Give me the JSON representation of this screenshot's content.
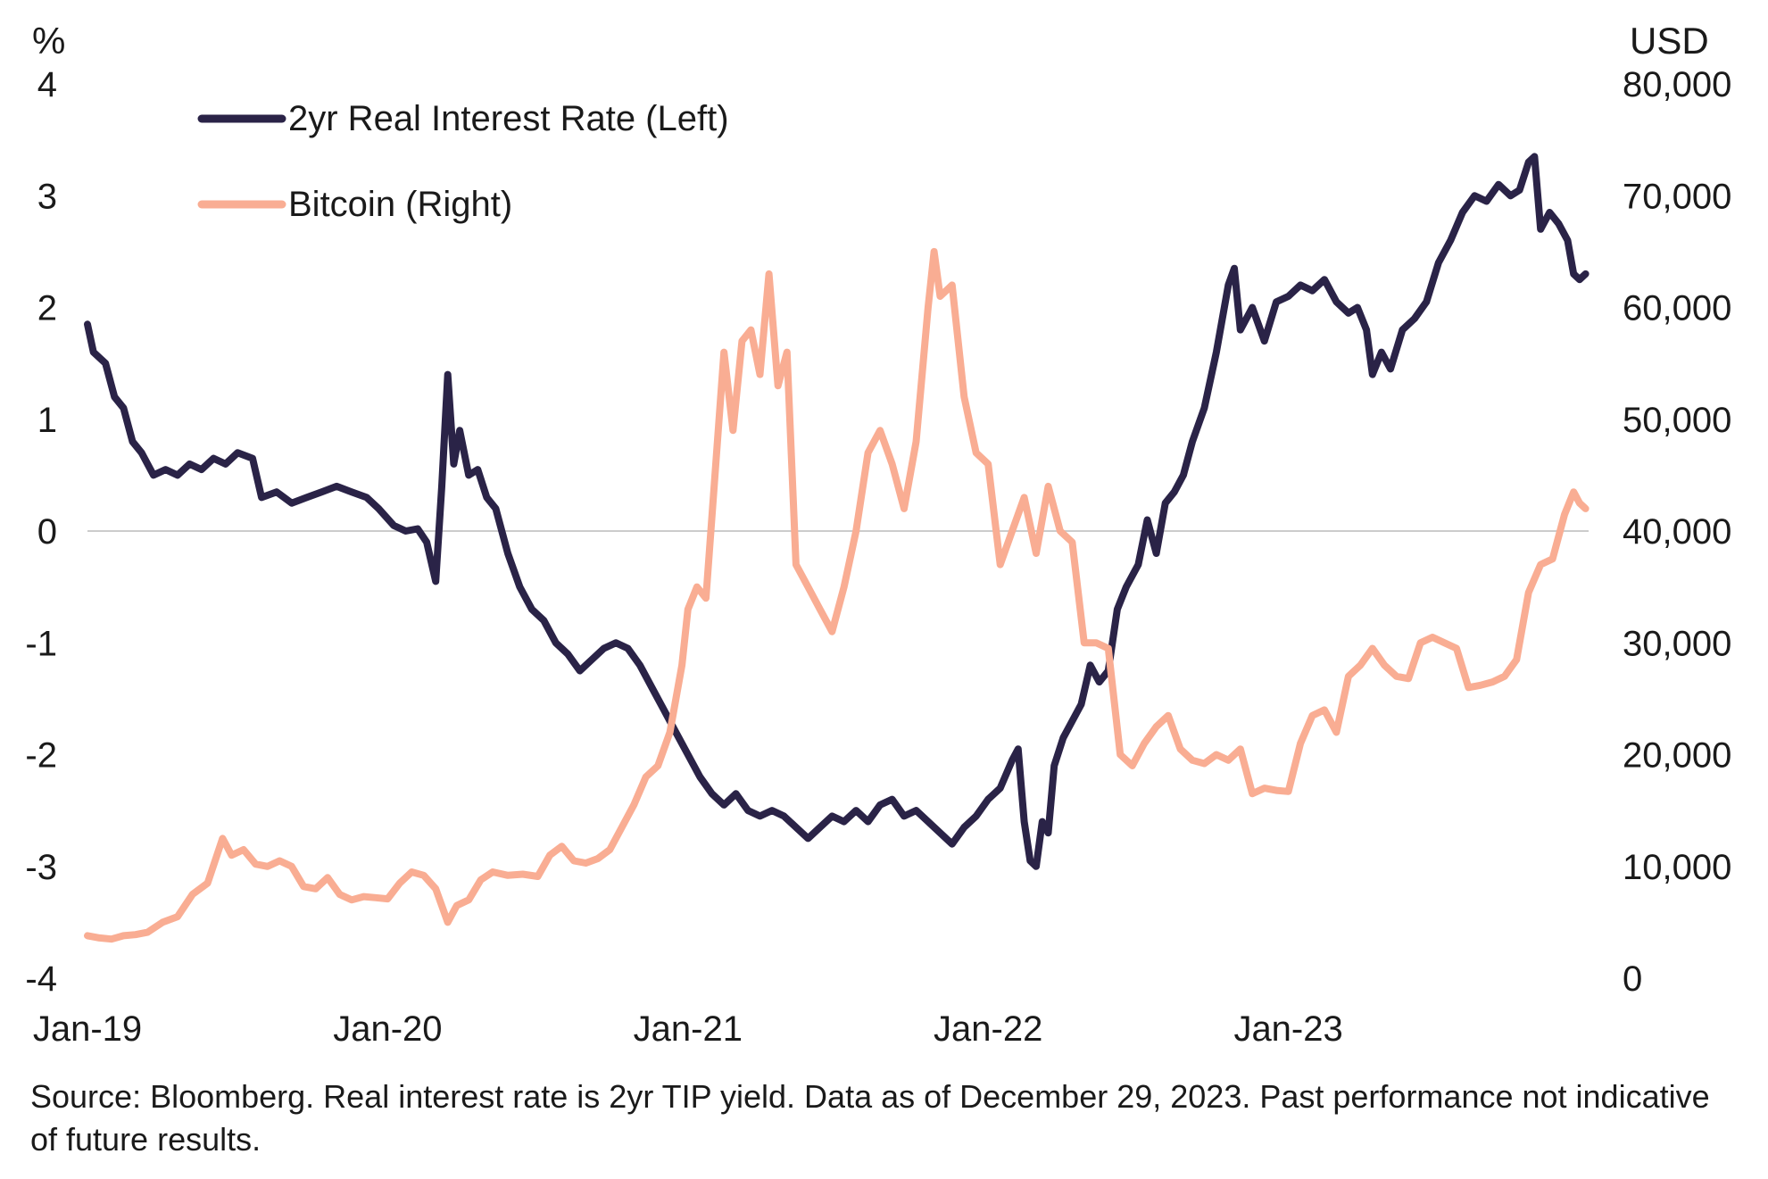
{
  "chart_data": {
    "type": "line",
    "title": "",
    "x_ticks": [
      "Jan-19",
      "Jan-20",
      "Jan-21",
      "Jan-22",
      "Jan-23"
    ],
    "x_range": [
      "Jan-19",
      "Dec-23"
    ],
    "left_axis": {
      "label": "%",
      "range": [
        -4,
        4
      ],
      "ticks": [
        "4",
        "3",
        "2",
        "1",
        "0",
        "-1",
        "-2",
        "-3",
        "-4"
      ]
    },
    "right_axis": {
      "label": "USD",
      "range": [
        0,
        80000
      ],
      "ticks": [
        "80,000",
        "70,000",
        "60,000",
        "50,000",
        "40,000",
        "30,000",
        "20,000",
        "10,000",
        "0"
      ]
    },
    "grid": false,
    "zero_line": true,
    "legend_position": "top-left",
    "series": [
      {
        "name": "2yr Real Interest Rate (Left)",
        "axis": "left",
        "color": "#2a2347",
        "points": [
          [
            2019.0,
            1.85
          ],
          [
            2019.02,
            1.6
          ],
          [
            2019.06,
            1.5
          ],
          [
            2019.09,
            1.2
          ],
          [
            2019.12,
            1.1
          ],
          [
            2019.15,
            0.8
          ],
          [
            2019.18,
            0.7
          ],
          [
            2019.22,
            0.5
          ],
          [
            2019.26,
            0.55
          ],
          [
            2019.3,
            0.5
          ],
          [
            2019.34,
            0.6
          ],
          [
            2019.38,
            0.55
          ],
          [
            2019.42,
            0.65
          ],
          [
            2019.46,
            0.6
          ],
          [
            2019.5,
            0.7
          ],
          [
            2019.55,
            0.65
          ],
          [
            2019.58,
            0.3
          ],
          [
            2019.63,
            0.35
          ],
          [
            2019.68,
            0.25
          ],
          [
            2019.73,
            0.3
          ],
          [
            2019.78,
            0.35
          ],
          [
            2019.83,
            0.4
          ],
          [
            2019.88,
            0.35
          ],
          [
            2019.93,
            0.3
          ],
          [
            2019.97,
            0.2
          ],
          [
            2020.02,
            0.05
          ],
          [
            2020.06,
            0.0
          ],
          [
            2020.1,
            0.02
          ],
          [
            2020.13,
            -0.1
          ],
          [
            2020.16,
            -0.45
          ],
          [
            2020.18,
            0.4
          ],
          [
            2020.2,
            1.4
          ],
          [
            2020.22,
            0.6
          ],
          [
            2020.24,
            0.9
          ],
          [
            2020.27,
            0.5
          ],
          [
            2020.3,
            0.55
          ],
          [
            2020.33,
            0.3
          ],
          [
            2020.36,
            0.2
          ],
          [
            2020.4,
            -0.2
          ],
          [
            2020.44,
            -0.5
          ],
          [
            2020.48,
            -0.7
          ],
          [
            2020.52,
            -0.8
          ],
          [
            2020.56,
            -1.0
          ],
          [
            2020.6,
            -1.1
          ],
          [
            2020.64,
            -1.25
          ],
          [
            2020.68,
            -1.15
          ],
          [
            2020.72,
            -1.05
          ],
          [
            2020.76,
            -1.0
          ],
          [
            2020.8,
            -1.05
          ],
          [
            2020.84,
            -1.2
          ],
          [
            2020.88,
            -1.4
          ],
          [
            2020.92,
            -1.6
          ],
          [
            2020.96,
            -1.8
          ],
          [
            2021.0,
            -2.0
          ],
          [
            2021.04,
            -2.2
          ],
          [
            2021.08,
            -2.35
          ],
          [
            2021.12,
            -2.45
          ],
          [
            2021.16,
            -2.35
          ],
          [
            2021.2,
            -2.5
          ],
          [
            2021.24,
            -2.55
          ],
          [
            2021.28,
            -2.5
          ],
          [
            2021.32,
            -2.55
          ],
          [
            2021.36,
            -2.65
          ],
          [
            2021.4,
            -2.75
          ],
          [
            2021.44,
            -2.65
          ],
          [
            2021.48,
            -2.55
          ],
          [
            2021.52,
            -2.6
          ],
          [
            2021.56,
            -2.5
          ],
          [
            2021.6,
            -2.6
          ],
          [
            2021.64,
            -2.45
          ],
          [
            2021.68,
            -2.4
          ],
          [
            2021.72,
            -2.55
          ],
          [
            2021.76,
            -2.5
          ],
          [
            2021.8,
            -2.6
          ],
          [
            2021.84,
            -2.7
          ],
          [
            2021.88,
            -2.8
          ],
          [
            2021.92,
            -2.65
          ],
          [
            2021.96,
            -2.55
          ],
          [
            2022.0,
            -2.4
          ],
          [
            2022.04,
            -2.3
          ],
          [
            2022.08,
            -2.05
          ],
          [
            2022.1,
            -1.95
          ],
          [
            2022.12,
            -2.6
          ],
          [
            2022.14,
            -2.95
          ],
          [
            2022.16,
            -3.0
          ],
          [
            2022.18,
            -2.6
          ],
          [
            2022.2,
            -2.7
          ],
          [
            2022.22,
            -2.1
          ],
          [
            2022.25,
            -1.85
          ],
          [
            2022.28,
            -1.7
          ],
          [
            2022.31,
            -1.55
          ],
          [
            2022.34,
            -1.2
          ],
          [
            2022.37,
            -1.35
          ],
          [
            2022.4,
            -1.25
          ],
          [
            2022.43,
            -0.7
          ],
          [
            2022.46,
            -0.5
          ],
          [
            2022.5,
            -0.3
          ],
          [
            2022.53,
            0.1
          ],
          [
            2022.56,
            -0.2
          ],
          [
            2022.59,
            0.25
          ],
          [
            2022.62,
            0.35
          ],
          [
            2022.65,
            0.5
          ],
          [
            2022.68,
            0.8
          ],
          [
            2022.72,
            1.1
          ],
          [
            2022.76,
            1.6
          ],
          [
            2022.8,
            2.2
          ],
          [
            2022.82,
            2.35
          ],
          [
            2022.84,
            1.8
          ],
          [
            2022.88,
            2.0
          ],
          [
            2022.92,
            1.7
          ],
          [
            2022.96,
            2.05
          ],
          [
            2023.0,
            2.1
          ],
          [
            2023.04,
            2.2
          ],
          [
            2023.08,
            2.15
          ],
          [
            2023.12,
            2.25
          ],
          [
            2023.16,
            2.05
          ],
          [
            2023.2,
            1.95
          ],
          [
            2023.23,
            2.0
          ],
          [
            2023.26,
            1.8
          ],
          [
            2023.28,
            1.4
          ],
          [
            2023.31,
            1.6
          ],
          [
            2023.34,
            1.45
          ],
          [
            2023.38,
            1.8
          ],
          [
            2023.42,
            1.9
          ],
          [
            2023.46,
            2.05
          ],
          [
            2023.5,
            2.4
          ],
          [
            2023.54,
            2.6
          ],
          [
            2023.58,
            2.85
          ],
          [
            2023.62,
            3.0
          ],
          [
            2023.66,
            2.95
          ],
          [
            2023.7,
            3.1
          ],
          [
            2023.74,
            3.0
          ],
          [
            2023.77,
            3.05
          ],
          [
            2023.8,
            3.3
          ],
          [
            2023.82,
            3.35
          ],
          [
            2023.84,
            2.7
          ],
          [
            2023.87,
            2.85
          ],
          [
            2023.9,
            2.75
          ],
          [
            2023.93,
            2.6
          ],
          [
            2023.95,
            2.3
          ],
          [
            2023.97,
            2.25
          ],
          [
            2023.99,
            2.3
          ]
        ]
      },
      {
        "name": "Bitcoin (Right)",
        "axis": "right",
        "color": "#f9ad93",
        "points": [
          [
            2019.0,
            3800
          ],
          [
            2019.04,
            3600
          ],
          [
            2019.08,
            3500
          ],
          [
            2019.12,
            3800
          ],
          [
            2019.16,
            3900
          ],
          [
            2019.2,
            4100
          ],
          [
            2019.25,
            5000
          ],
          [
            2019.3,
            5500
          ],
          [
            2019.35,
            7500
          ],
          [
            2019.4,
            8500
          ],
          [
            2019.45,
            12500
          ],
          [
            2019.48,
            11000
          ],
          [
            2019.52,
            11500
          ],
          [
            2019.56,
            10200
          ],
          [
            2019.6,
            10000
          ],
          [
            2019.64,
            10500
          ],
          [
            2019.68,
            10000
          ],
          [
            2019.72,
            8200
          ],
          [
            2019.76,
            8000
          ],
          [
            2019.8,
            9000
          ],
          [
            2019.84,
            7500
          ],
          [
            2019.88,
            7000
          ],
          [
            2019.92,
            7300
          ],
          [
            2019.96,
            7200
          ],
          [
            2020.0,
            7100
          ],
          [
            2020.04,
            8500
          ],
          [
            2020.08,
            9500
          ],
          [
            2020.12,
            9200
          ],
          [
            2020.16,
            8000
          ],
          [
            2020.2,
            5000
          ],
          [
            2020.23,
            6500
          ],
          [
            2020.27,
            7000
          ],
          [
            2020.31,
            8800
          ],
          [
            2020.35,
            9500
          ],
          [
            2020.4,
            9200
          ],
          [
            2020.45,
            9300
          ],
          [
            2020.5,
            9100
          ],
          [
            2020.54,
            11000
          ],
          [
            2020.58,
            11800
          ],
          [
            2020.62,
            10500
          ],
          [
            2020.66,
            10300
          ],
          [
            2020.7,
            10700
          ],
          [
            2020.74,
            11500
          ],
          [
            2020.78,
            13500
          ],
          [
            2020.82,
            15500
          ],
          [
            2020.86,
            18000
          ],
          [
            2020.9,
            19000
          ],
          [
            2020.94,
            22000
          ],
          [
            2020.98,
            28000
          ],
          [
            2021.0,
            33000
          ],
          [
            2021.03,
            35000
          ],
          [
            2021.06,
            34000
          ],
          [
            2021.09,
            45000
          ],
          [
            2021.12,
            56000
          ],
          [
            2021.15,
            49000
          ],
          [
            2021.18,
            57000
          ],
          [
            2021.21,
            58000
          ],
          [
            2021.24,
            54000
          ],
          [
            2021.27,
            63000
          ],
          [
            2021.3,
            53000
          ],
          [
            2021.33,
            56000
          ],
          [
            2021.36,
            37000
          ],
          [
            2021.4,
            35000
          ],
          [
            2021.44,
            33000
          ],
          [
            2021.48,
            31000
          ],
          [
            2021.52,
            35000
          ],
          [
            2021.56,
            40000
          ],
          [
            2021.6,
            47000
          ],
          [
            2021.64,
            49000
          ],
          [
            2021.68,
            46000
          ],
          [
            2021.72,
            42000
          ],
          [
            2021.76,
            48000
          ],
          [
            2021.8,
            60000
          ],
          [
            2021.82,
            65000
          ],
          [
            2021.84,
            61000
          ],
          [
            2021.88,
            62000
          ],
          [
            2021.92,
            52000
          ],
          [
            2021.96,
            47000
          ],
          [
            2022.0,
            46000
          ],
          [
            2022.04,
            37000
          ],
          [
            2022.08,
            40000
          ],
          [
            2022.12,
            43000
          ],
          [
            2022.16,
            38000
          ],
          [
            2022.2,
            44000
          ],
          [
            2022.24,
            40000
          ],
          [
            2022.28,
            39000
          ],
          [
            2022.32,
            30000
          ],
          [
            2022.36,
            30000
          ],
          [
            2022.4,
            29500
          ],
          [
            2022.44,
            20000
          ],
          [
            2022.48,
            19000
          ],
          [
            2022.52,
            21000
          ],
          [
            2022.56,
            22500
          ],
          [
            2022.6,
            23500
          ],
          [
            2022.64,
            20500
          ],
          [
            2022.68,
            19500
          ],
          [
            2022.72,
            19200
          ],
          [
            2022.76,
            20000
          ],
          [
            2022.8,
            19500
          ],
          [
            2022.84,
            20500
          ],
          [
            2022.88,
            16500
          ],
          [
            2022.92,
            17000
          ],
          [
            2022.96,
            16800
          ],
          [
            2023.0,
            16700
          ],
          [
            2023.04,
            21000
          ],
          [
            2023.08,
            23500
          ],
          [
            2023.12,
            24000
          ],
          [
            2023.16,
            22000
          ],
          [
            2023.2,
            27000
          ],
          [
            2023.24,
            28000
          ],
          [
            2023.28,
            29500
          ],
          [
            2023.32,
            28000
          ],
          [
            2023.36,
            27000
          ],
          [
            2023.4,
            26800
          ],
          [
            2023.44,
            30000
          ],
          [
            2023.48,
            30500
          ],
          [
            2023.52,
            30000
          ],
          [
            2023.56,
            29500
          ],
          [
            2023.6,
            26000
          ],
          [
            2023.64,
            26200
          ],
          [
            2023.68,
            26500
          ],
          [
            2023.72,
            27000
          ],
          [
            2023.76,
            28500
          ],
          [
            2023.8,
            34500
          ],
          [
            2023.84,
            37000
          ],
          [
            2023.88,
            37500
          ],
          [
            2023.92,
            41500
          ],
          [
            2023.95,
            43500
          ],
          [
            2023.97,
            42500
          ],
          [
            2023.99,
            42000
          ]
        ]
      }
    ]
  },
  "legend": {
    "rate_label": "2yr Real Interest Rate (Left)",
    "btc_label": "Bitcoin (Right)"
  },
  "source_note": "Source: Bloomberg. Real interest rate is 2yr TIP yield. Data as of December 29, 2023. Past performance not indicative of future results.",
  "colors": {
    "rate": "#2a2347",
    "bitcoin": "#f9ad93",
    "zero_line": "#cccccc",
    "text": "#1a1a1a"
  }
}
